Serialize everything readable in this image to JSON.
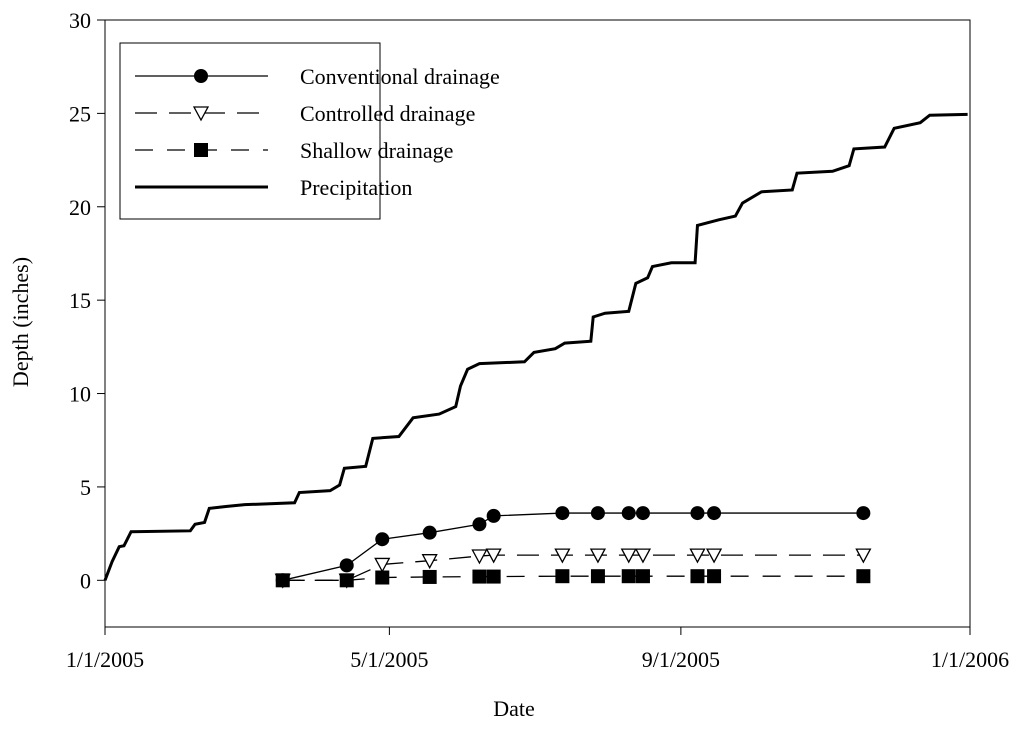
{
  "chart_data": {
    "type": "line",
    "xlabel": "Date",
    "ylabel": "Depth (inches)",
    "xlim": [
      "1/1/2005",
      "1/1/2006"
    ],
    "xticks": [
      "1/1/2005",
      "5/1/2005",
      "9/1/2005",
      "1/1/2006"
    ],
    "ylim": [
      -2.5,
      30
    ],
    "yticks": [
      0,
      5,
      10,
      15,
      20,
      25,
      30
    ],
    "legend": "upper left",
    "series": [
      {
        "name": "Conventional drainage",
        "color": "#000000",
        "marker": "circle",
        "dash": "solid",
        "x": [
          "3/17/2005",
          "4/13/2005",
          "4/28/2005",
          "5/18/2005",
          "6/8/2005",
          "6/14/2005",
          "7/13/2005",
          "7/28/2005",
          "8/10/2005",
          "8/16/2005",
          "9/8/2005",
          "9/15/2005",
          "11/17/2005"
        ],
        "values": [
          0,
          0.8,
          2.2,
          2.55,
          3.0,
          3.45,
          3.6,
          3.6,
          3.6,
          3.6,
          3.6,
          3.6,
          3.6
        ]
      },
      {
        "name": "Controlled drainage",
        "color": "#000000",
        "marker": "triangle-down",
        "dash": "long",
        "x": [
          "3/17/2005",
          "4/13/2005",
          "4/28/2005",
          "5/18/2005",
          "6/8/2005",
          "6/14/2005",
          "7/13/2005",
          "7/28/2005",
          "8/10/2005",
          "8/16/2005",
          "9/8/2005",
          "9/15/2005",
          "11/17/2005"
        ],
        "values": [
          0,
          0,
          0.85,
          1.05,
          1.3,
          1.35,
          1.35,
          1.35,
          1.35,
          1.35,
          1.35,
          1.35,
          1.35
        ]
      },
      {
        "name": "Shallow drainage",
        "color": "#000000",
        "marker": "square",
        "dash": "medium",
        "x": [
          "3/17/2005",
          "4/13/2005",
          "4/28/2005",
          "5/18/2005",
          "6/8/2005",
          "6/14/2005",
          "7/13/2005",
          "7/28/2005",
          "8/10/2005",
          "8/16/2005",
          "9/8/2005",
          "9/15/2005",
          "11/17/2005"
        ],
        "values": [
          0,
          0,
          0.15,
          0.18,
          0.2,
          0.2,
          0.22,
          0.22,
          0.22,
          0.22,
          0.22,
          0.22,
          0.22
        ]
      },
      {
        "name": "Precipitation",
        "color": "#000000",
        "marker": "none",
        "dash": "solid",
        "x": [
          "1/1/2005",
          "1/4/2005",
          "1/7/2005",
          "1/9/2005",
          "1/12/2005",
          "2/6/2005",
          "2/8/2005",
          "2/12/2005",
          "2/14/2005",
          "2/21/2005",
          "3/1/2005",
          "3/22/2005",
          "3/24/2005",
          "4/6/2005",
          "4/10/2005",
          "4/12/2005",
          "4/21/2005",
          "4/24/2005",
          "5/5/2005",
          "5/11/2005",
          "5/22/2005",
          "5/29/2005",
          "5/31/2005",
          "6/3/2005",
          "6/8/2005",
          "6/27/2005",
          "7/1/2005",
          "7/10/2005",
          "7/14/2005",
          "7/25/2005",
          "7/26/2005",
          "7/31/2005",
          "8/10/2005",
          "8/13/2005",
          "8/18/2005",
          "8/20/2005",
          "8/28/2005",
          "9/7/2005",
          "9/8/2005",
          "9/17/2005",
          "9/24/2005",
          "9/27/2005",
          "10/5/2005",
          "10/18/2005",
          "10/20/2005",
          "11/4/2005",
          "11/11/2005",
          "11/13/2005",
          "11/26/2005",
          "11/30/2005",
          "12/11/2005",
          "12/15/2005",
          "12/31/2005"
        ],
        "values": [
          0,
          1.0,
          1.8,
          1.85,
          2.6,
          2.65,
          3.0,
          3.1,
          3.85,
          3.95,
          4.05,
          4.15,
          4.7,
          4.8,
          5.1,
          6.0,
          6.1,
          7.6,
          7.7,
          8.7,
          8.9,
          9.3,
          10.4,
          11.3,
          11.6,
          11.7,
          12.2,
          12.4,
          12.7,
          12.8,
          14.1,
          14.3,
          14.4,
          15.9,
          16.2,
          16.8,
          17.0,
          17.0,
          19.0,
          19.3,
          19.5,
          20.2,
          20.8,
          20.9,
          21.8,
          21.9,
          22.2,
          23.1,
          23.2,
          24.2,
          24.5,
          24.9,
          24.95
        ]
      }
    ]
  }
}
